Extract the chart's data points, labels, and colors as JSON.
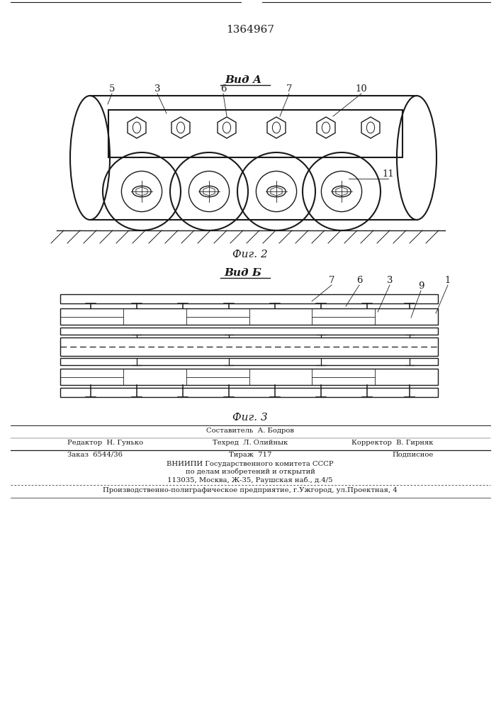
{
  "patent_number": "1364967",
  "fig2_label": "Вид А",
  "fig2_caption": "Фиг. 2",
  "fig3_label": "Вид Б",
  "fig3_caption": "Фиг. 3",
  "bg_color": "#ffffff",
  "line_color": "#1a1a1a"
}
